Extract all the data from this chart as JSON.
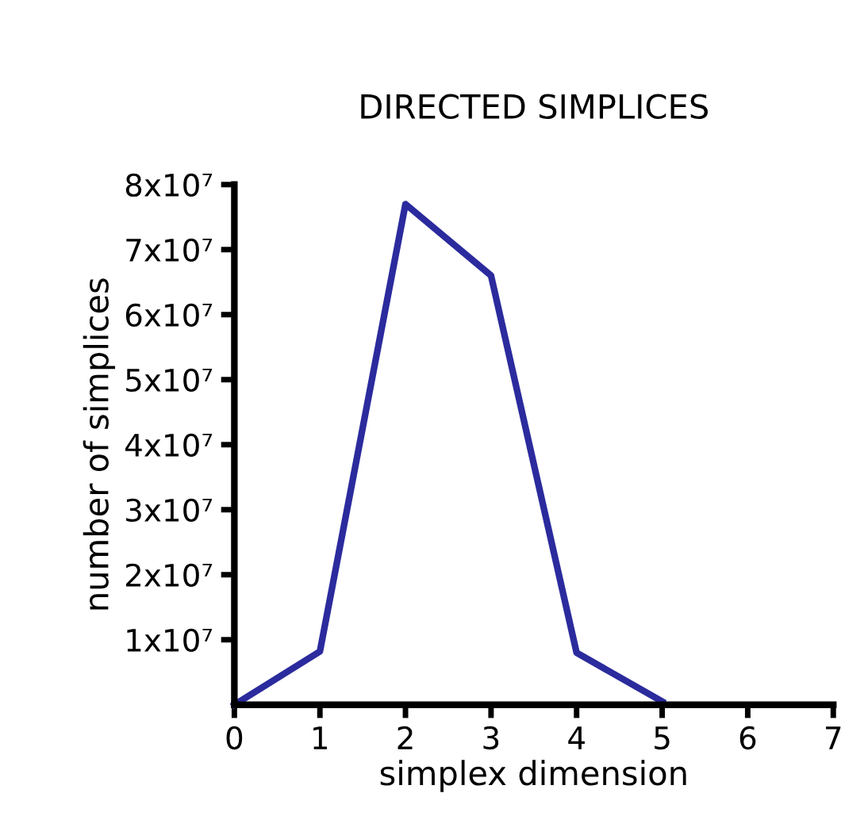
{
  "chart_data": {
    "type": "line",
    "title": "DIRECTED SIMPLICES",
    "xlabel": "simplex dimension",
    "ylabel": "number of simplices",
    "x": [
      0,
      1,
      2,
      3,
      4,
      5
    ],
    "series": [
      {
        "color": "#2b2b9e",
        "values": [
          0,
          8200000,
          77000000,
          66000000,
          8000000,
          500000
        ]
      }
    ],
    "xlim": [
      0,
      7
    ],
    "xticks": [
      0,
      1,
      2,
      3,
      4,
      5,
      6,
      7
    ],
    "ylim": [
      0,
      80000000
    ],
    "yticks": [
      {
        "value": 10000000,
        "label": "1x10⁷"
      },
      {
        "value": 20000000,
        "label": "2x10⁷"
      },
      {
        "value": 30000000,
        "label": "3x10⁷"
      },
      {
        "value": 40000000,
        "label": "4x10⁷"
      },
      {
        "value": 50000000,
        "label": "5x10⁷"
      },
      {
        "value": 60000000,
        "label": "6x10⁷"
      },
      {
        "value": 70000000,
        "label": "7x10⁷"
      },
      {
        "value": 80000000,
        "label": "8x10⁷"
      }
    ],
    "grid": false,
    "marker": "none",
    "line_style": "solid"
  }
}
